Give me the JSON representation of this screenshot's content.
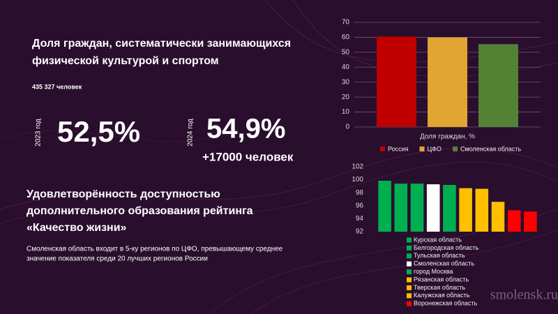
{
  "texts": {
    "title_lines": [
      "Доля граждан, систематически занимающихся",
      "физической культурой и спортом"
    ],
    "people_count": "435 327 человек",
    "year_2023": "2023 год",
    "value_2023": "52,5%",
    "year_2024": "2024 год",
    "value_2024": "54,9%",
    "increase": "+17000 человек",
    "heading_lines": [
      "Удовлетворённость доступностью",
      "дополнительного образования рейтинга",
      "«Качество жизни»"
    ],
    "paragraph_lines": [
      "Смоленская область входит в 5-ку регионов по ЦФО, превышающему среднее",
      "значение показателя среди 20 лучших регионов России"
    ],
    "watermark": "smolensk.ru"
  },
  "chart_data": [
    {
      "type": "bar",
      "categories": [
        "Доля граждан, %"
      ],
      "series": [
        {
          "name": "Россия",
          "color": "#c00000",
          "values": [
            60.5
          ]
        },
        {
          "name": "ЦФО",
          "color": "#e3a532",
          "values": [
            59.9
          ]
        },
        {
          "name": "Смоленская область",
          "color": "#548235",
          "values": [
            55.4
          ]
        }
      ],
      "ylim": [
        0,
        70
      ],
      "yticks": [
        0,
        10,
        20,
        30,
        40,
        50,
        60,
        70
      ],
      "grid": true,
      "legend": "bottom"
    },
    {
      "type": "bar",
      "categories": [
        "Курская область",
        "Белгородская область",
        "Тульская область",
        "Смоленская область",
        "город Москва",
        "Рязанская область",
        "Тверская область",
        "Калужская область",
        "Воронежская область",
        null
      ],
      "values": [
        99.85,
        99.4,
        99.4,
        99.3,
        99.2,
        98.7,
        98.6,
        96.6,
        95.3,
        95.1
      ],
      "colors": [
        "#00b050",
        "#00b050",
        "#00b050",
        "#ffffff",
        "#00b050",
        "#ffc000",
        "#ffc000",
        "#ffc000",
        "#ff0000",
        "#ff0000"
      ],
      "ylim": [
        92,
        102
      ],
      "yticks": [
        92,
        94,
        96,
        98,
        100,
        102
      ],
      "grid": false,
      "legend": "bottom"
    }
  ]
}
